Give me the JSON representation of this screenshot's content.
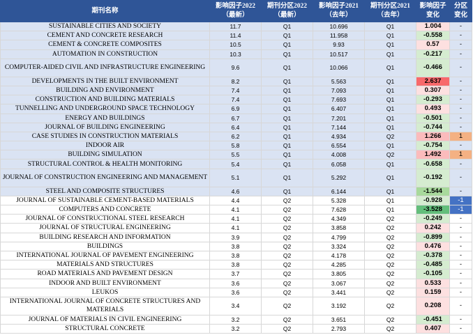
{
  "headers": {
    "name": "期刊名称",
    "if2022": "影响因子2022\n（最新）",
    "q2022": "期刊分区2022\n（最新）",
    "if2021": "影响因子2021\n（去年）",
    "q2021": "期刊分区2021\n（去年）",
    "ifchg": "影响因子\n变化",
    "qchg": "分区\n变化"
  },
  "colors": {
    "header_bg": "#2f5597",
    "q1_row_bg": "#dae3f3",
    "q2_row_bg": "#ffffff",
    "pos_strong": "#f8696b",
    "pos_mid": "#fbbbbc",
    "pos_light": "#fde0e0",
    "neg_light": "#d5ecd0",
    "neg_mid": "#a8d99c",
    "neg_strong": "#63be7b",
    "up_badge": "#f4b183",
    "down_badge": "#4472c4"
  },
  "rows": [
    {
      "name": "SUSTAINABLE CITIES AND SOCIETY",
      "if2022": "11.7",
      "q2022": "Q1",
      "if2021": "10.696",
      "q2021": "Q1",
      "ifchg": "1.004",
      "qchg": "-",
      "tone": "pos_light",
      "badge": ""
    },
    {
      "name": "CEMENT AND CONCRETE RESEARCH",
      "if2022": "11.4",
      "q2022": "Q1",
      "if2021": "11.958",
      "q2021": "Q1",
      "ifchg": "-0.558",
      "qchg": "-",
      "tone": "neg_light",
      "badge": ""
    },
    {
      "name": "CEMENT & CONCRETE COMPOSITES",
      "if2022": "10.5",
      "q2022": "Q1",
      "if2021": "9.93",
      "q2021": "Q1",
      "ifchg": "0.57",
      "qchg": "-",
      "tone": "pos_light",
      "badge": ""
    },
    {
      "name": "AUTOMATION IN CONSTRUCTION",
      "if2022": "10.3",
      "q2022": "Q1",
      "if2021": "10.517",
      "q2021": "Q1",
      "ifchg": "-0.217",
      "qchg": "-",
      "tone": "neg_light",
      "badge": ""
    },
    {
      "name": "COMPUTER-AIDED CIVIL AND INFRASTRUCTURE ENGINEERING",
      "if2022": "9.6",
      "q2022": "Q1",
      "if2021": "10.066",
      "q2021": "Q1",
      "ifchg": "-0.466",
      "qchg": "-",
      "tone": "neg_light",
      "badge": "",
      "tall": true
    },
    {
      "name": "DEVELOPMENTS IN THE BUILT ENVIRONMENT",
      "if2022": "8.2",
      "q2022": "Q1",
      "if2021": "5.563",
      "q2021": "Q1",
      "ifchg": "2.637",
      "qchg": "-",
      "tone": "pos_strong",
      "badge": ""
    },
    {
      "name": "BUILDING AND ENVIRONMENT",
      "if2022": "7.4",
      "q2022": "Q1",
      "if2021": "7.093",
      "q2021": "Q1",
      "ifchg": "0.307",
      "qchg": "-",
      "tone": "pos_light",
      "badge": ""
    },
    {
      "name": "CONSTRUCTION AND BUILDING MATERIALS",
      "if2022": "7.4",
      "q2022": "Q1",
      "if2021": "7.693",
      "q2021": "Q1",
      "ifchg": "-0.293",
      "qchg": "-",
      "tone": "neg_light",
      "badge": ""
    },
    {
      "name": "TUNNELLING AND UNDERGROUND SPACE TECHNOLOGY",
      "if2022": "6.9",
      "q2022": "Q1",
      "if2021": "6.407",
      "q2021": "Q1",
      "ifchg": "0.493",
      "qchg": "-",
      "tone": "pos_light",
      "badge": ""
    },
    {
      "name": "ENERGY AND BUILDINGS",
      "if2022": "6.7",
      "q2022": "Q1",
      "if2021": "7.201",
      "q2021": "Q1",
      "ifchg": "-0.501",
      "qchg": "-",
      "tone": "neg_light",
      "badge": ""
    },
    {
      "name": "JOURNAL OF BUILDING ENGINEERING",
      "if2022": "6.4",
      "q2022": "Q1",
      "if2021": "7.144",
      "q2021": "Q1",
      "ifchg": "-0.744",
      "qchg": "-",
      "tone": "neg_light",
      "badge": ""
    },
    {
      "name": "CASE STUDIES IN CONSTRUCTION MATERIALS",
      "if2022": "6.2",
      "q2022": "Q1",
      "if2021": "4.934",
      "q2021": "Q2",
      "ifchg": "1.266",
      "qchg": "1",
      "tone": "pos_mid",
      "badge": "up"
    },
    {
      "name": "INDOOR AIR",
      "if2022": "5.8",
      "q2022": "Q1",
      "if2021": "6.554",
      "q2021": "Q1",
      "ifchg": "-0.754",
      "qchg": "-",
      "tone": "neg_light",
      "badge": ""
    },
    {
      "name": "BUILDING SIMULATION",
      "if2022": "5.5",
      "q2022": "Q1",
      "if2021": "4.008",
      "q2021": "Q2",
      "ifchg": "1.492",
      "qchg": "1",
      "tone": "pos_mid",
      "badge": "up"
    },
    {
      "name": "STRUCTURAL CONTROL & HEALTH MONITORING",
      "if2022": "5.4",
      "q2022": "Q1",
      "if2021": "6.058",
      "q2021": "Q1",
      "ifchg": "-0.658",
      "qchg": "-",
      "tone": "neg_light",
      "badge": ""
    },
    {
      "name": "JOURNAL OF CONSTRUCTION ENGINEERING AND MANAGEMENT",
      "if2022": "5.1",
      "q2022": "Q1",
      "if2021": "5.292",
      "q2021": "Q1",
      "ifchg": "-0.192",
      "qchg": "-",
      "tone": "neg_light",
      "badge": "",
      "tall": true
    },
    {
      "name": "STEEL AND COMPOSITE STRUCTURES",
      "if2022": "4.6",
      "q2022": "Q1",
      "if2021": "6.144",
      "q2021": "Q1",
      "ifchg": "-1.544",
      "qchg": "-",
      "tone": "neg_mid",
      "badge": ""
    },
    {
      "name": "JOURNAL OF SUSTAINABLE CEMENT-BASED MATERIALS",
      "if2022": "4.4",
      "q2022": "Q2",
      "if2021": "5.328",
      "q2021": "Q1",
      "ifchg": "-0.928",
      "qchg": "-1",
      "tone": "neg_light",
      "badge": "down"
    },
    {
      "name": "COMPUTERS AND CONCRETE",
      "if2022": "4.1",
      "q2022": "Q2",
      "if2021": "7.628",
      "q2021": "Q1",
      "ifchg": "-3.528",
      "qchg": "-1",
      "tone": "neg_strong",
      "badge": "down"
    },
    {
      "name": "JOURNAL OF CONSTRUCTIONAL STEEL RESEARCH",
      "if2022": "4.1",
      "q2022": "Q2",
      "if2021": "4.349",
      "q2021": "Q2",
      "ifchg": "-0.249",
      "qchg": "-",
      "tone": "neg_light",
      "badge": ""
    },
    {
      "name": "JOURNAL OF STRUCTURAL ENGINEERING",
      "if2022": "4.1",
      "q2022": "Q2",
      "if2021": "3.858",
      "q2021": "Q2",
      "ifchg": "0.242",
      "qchg": "-",
      "tone": "pos_light",
      "badge": ""
    },
    {
      "name": "BUILDING RESEARCH AND INFORMATION",
      "if2022": "3.9",
      "q2022": "Q2",
      "if2021": "4.799",
      "q2021": "Q2",
      "ifchg": "-0.899",
      "qchg": "-",
      "tone": "neg_light",
      "badge": ""
    },
    {
      "name": "BUILDINGS",
      "if2022": "3.8",
      "q2022": "Q2",
      "if2021": "3.324",
      "q2021": "Q2",
      "ifchg": "0.476",
      "qchg": "-",
      "tone": "pos_light",
      "badge": ""
    },
    {
      "name": "INTERNATIONAL JOURNAL OF PAVEMENT ENGINEERING",
      "if2022": "3.8",
      "q2022": "Q2",
      "if2021": "4.178",
      "q2021": "Q2",
      "ifchg": "-0.378",
      "qchg": "-",
      "tone": "neg_light",
      "badge": ""
    },
    {
      "name": "MATERIALS AND STRUCTURES",
      "if2022": "3.8",
      "q2022": "Q2",
      "if2021": "4.285",
      "q2021": "Q2",
      "ifchg": "-0.485",
      "qchg": "-",
      "tone": "neg_light",
      "badge": ""
    },
    {
      "name": "ROAD MATERIALS AND PAVEMENT DESIGN",
      "if2022": "3.7",
      "q2022": "Q2",
      "if2021": "3.805",
      "q2021": "Q2",
      "ifchg": "-0.105",
      "qchg": "-",
      "tone": "neg_light",
      "badge": ""
    },
    {
      "name": "INDOOR AND BUILT ENVIRONMENT",
      "if2022": "3.6",
      "q2022": "Q2",
      "if2021": "3.067",
      "q2021": "Q2",
      "ifchg": "0.533",
      "qchg": "-",
      "tone": "pos_light",
      "badge": ""
    },
    {
      "name": "LEUKOS",
      "if2022": "3.6",
      "q2022": "Q2",
      "if2021": "3.441",
      "q2021": "Q2",
      "ifchg": "0.159",
      "qchg": "-",
      "tone": "pos_light",
      "badge": ""
    },
    {
      "name": "INTERNATIONAL JOURNAL OF CONCRETE STRUCTURES AND MATERIALS",
      "if2022": "3.4",
      "q2022": "Q2",
      "if2021": "3.192",
      "q2021": "Q2",
      "ifchg": "0.208",
      "qchg": "-",
      "tone": "pos_light",
      "badge": "",
      "tall": true
    },
    {
      "name": "JOURNAL OF MATERIALS IN CIVIL ENGINEERING",
      "if2022": "3.2",
      "q2022": "Q2",
      "if2021": "3.651",
      "q2021": "Q2",
      "ifchg": "-0.451",
      "qchg": "-",
      "tone": "neg_light",
      "badge": ""
    },
    {
      "name": "STRUCTURAL CONCRETE",
      "if2022": "3.2",
      "q2022": "Q2",
      "if2021": "2.793",
      "q2021": "Q2",
      "ifchg": "0.407",
      "qchg": "-",
      "tone": "pos_light",
      "badge": ""
    }
  ]
}
